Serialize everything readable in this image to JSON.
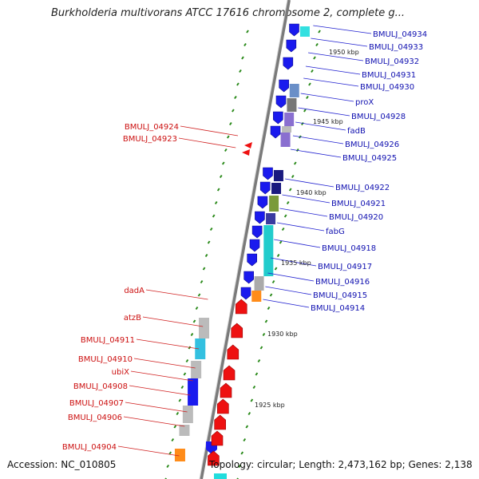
{
  "title": "Burkholderia multivorans ATCC 17616 chromosome 2, complete g...",
  "footer": {
    "accession": "Accession: NC_010805",
    "summary": "Topology: circular; Length: 2,473,162 bp; Genes: 2,138"
  },
  "colors": {
    "plus_strand": "#1a1aee",
    "minus_strand": "#ee1111",
    "tick": "#2a8a1a",
    "backbone": "#888888",
    "plus_label": "#1010b0",
    "minus_label": "#cc1010"
  },
  "scale_labels": [
    "1950 kbp",
    "1945 kbp",
    "1940 kbp",
    "1935 kbp",
    "1930 kbp",
    "1925 kbp"
  ],
  "plus_genes": [
    "BMULJ_04934",
    "BMULJ_04933",
    "BMULJ_04932",
    "BMULJ_04931",
    "BMULJ_04930",
    "proX",
    "BMULJ_04928",
    "fadB",
    "BMULJ_04926",
    "BMULJ_04925",
    "BMULJ_04922",
    "BMULJ_04921",
    "BMULJ_04920",
    "fabG",
    "BMULJ_04918",
    "BMULJ_04917",
    "BMULJ_04916",
    "BMULJ_04915",
    "BMULJ_04914"
  ],
  "minus_genes": [
    "BMULJ_04924",
    "BMULJ_04923",
    "dadA",
    "atzB",
    "BMULJ_04911",
    "BMULJ_04910",
    "ubiX",
    "BMULJ_04908",
    "BMULJ_04907",
    "BMULJ_04906",
    "BMULJ_04904"
  ]
}
